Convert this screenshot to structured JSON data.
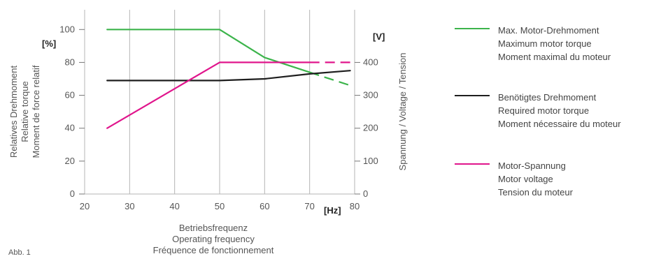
{
  "figure_label": "Abb. 1",
  "chart_data": {
    "type": "line",
    "x_axis": {
      "min": 20,
      "max": 80,
      "ticks": [
        20,
        30,
        40,
        50,
        60,
        70,
        80
      ],
      "unit": "[Hz]",
      "label_lines": [
        "Betriebsfrequenz",
        "Operating frequency",
        "Fréquence de fonctionnement"
      ]
    },
    "y_left": {
      "min": 0,
      "max": 100,
      "ticks": [
        0,
        20,
        40,
        60,
        80,
        100
      ],
      "unit": "[%]",
      "label_lines": [
        "Relatives Drehmoment",
        "Relative torque",
        "Moment de force relatif"
      ]
    },
    "y_right": {
      "min": 0,
      "max": 500,
      "ticks": [
        0,
        100,
        200,
        300,
        400
      ],
      "unit": "[V]",
      "label": "Spannung / Voltage / Tension"
    },
    "grid": "vertical",
    "legend_position": "right",
    "series": [
      {
        "name_lines": [
          "Max. Motor-Drehmoment",
          "Maximum motor torque",
          "Moment maximal du moteur"
        ],
        "color": "#3cb44b",
        "axis": "left",
        "solid": [
          [
            25,
            100
          ],
          [
            50,
            100
          ],
          [
            60,
            83
          ],
          [
            70,
            74
          ]
        ],
        "dashed": [
          [
            70,
            74
          ],
          [
            79,
            66
          ]
        ]
      },
      {
        "name_lines": [
          "Benötigtes Drehmoment",
          "Required motor torque",
          "Moment nécessaire du moteur"
        ],
        "color": "#1e1e1e",
        "axis": "left",
        "solid": [
          [
            25,
            69
          ],
          [
            50,
            69
          ],
          [
            60,
            70
          ],
          [
            70,
            73
          ],
          [
            79,
            75
          ]
        ],
        "dashed": []
      },
      {
        "name_lines": [
          "Motor-Spannung",
          "Motor voltage",
          "Tension du moteur"
        ],
        "color": "#e0158c",
        "axis": "left",
        "solid": [
          [
            25,
            40
          ],
          [
            50,
            80
          ],
          [
            70,
            80
          ]
        ],
        "dashed": [
          [
            70,
            80
          ],
          [
            79,
            80
          ]
        ]
      }
    ]
  }
}
